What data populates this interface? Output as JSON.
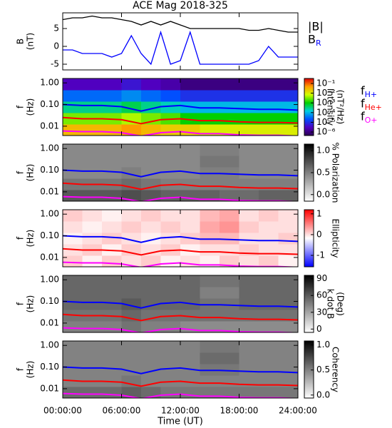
{
  "chart_data": [
    {
      "type": "line",
      "title": "ACE Mag 2018-325",
      "ylabel": [
        "B",
        "(nT)"
      ],
      "x": [
        0,
        1,
        2,
        3,
        4,
        5,
        6,
        7,
        8,
        9,
        10,
        11,
        12,
        13,
        14,
        15,
        16,
        17,
        18,
        19,
        20,
        21,
        22,
        23,
        24
      ],
      "xlim": [
        0,
        24
      ],
      "ylim": [
        -6.6,
        9.4
      ],
      "yticks": [
        5,
        0,
        -5
      ],
      "legend": "right",
      "series": [
        {
          "name": "|B|",
          "color": "#000000",
          "values": [
            7.5,
            8,
            8,
            8.5,
            8,
            8,
            7.5,
            7,
            6,
            7,
            6,
            7,
            6,
            5,
            5,
            5,
            5,
            5,
            5,
            4.5,
            4.5,
            5,
            4.5,
            4,
            4
          ]
        },
        {
          "name": "B",
          "subscript": "R",
          "color": "#0000ff",
          "values": [
            -1,
            -1,
            -2,
            -2,
            -2,
            -3,
            -2,
            3,
            -2,
            -5,
            4,
            -5,
            -4,
            4,
            -5,
            -5,
            -5,
            -5,
            -5,
            -5,
            -4,
            0,
            -3,
            -3,
            -3
          ]
        }
      ]
    },
    {
      "type": "heatmap",
      "ylabel": [
        "f",
        "(Hz)"
      ],
      "log_y": true,
      "xlim": [
        0,
        24
      ],
      "ylim": [
        0.0037,
        1.6
      ],
      "yticks": [
        {
          "value": 1,
          "label": "1.00"
        },
        {
          "value": 0.1,
          "label": "0.10"
        },
        0.01
      ],
      "colormap": "rainbow",
      "log_c": true,
      "clim": [
        4.3e-07,
        0.33
      ],
      "cticks": [
        {
          "value": 0.1,
          "label": "10⁻¹"
        },
        {
          "value": 0.01,
          "label": "10⁻²"
        },
        {
          "value": 0.001,
          "label": "10⁻³"
        },
        {
          "value": 0.0001,
          "label": "10⁻⁴"
        },
        {
          "value": 1e-05,
          "label": "10⁻⁵"
        },
        {
          "value": 1e-06,
          "label": "10⁻⁶"
        }
      ],
      "clabel": [
        "Intensity",
        "(nT²/Hz)"
      ],
      "z": [
        [
          0.03,
          0.03,
          0.03,
          0.05,
          0.03,
          0.02,
          0.02,
          0.01,
          0.01,
          0.01,
          0.01,
          0.01
        ],
        [
          0.003,
          0.003,
          0.003,
          0.005,
          0.003,
          0.002,
          0.001,
          0.001,
          0.001,
          0.001,
          0.001,
          0.001
        ],
        [
          0.0003,
          0.0003,
          0.0003,
          0.0005,
          0.0003,
          0.0002,
          0.0001,
          0.0001,
          0.0001,
          0.0001,
          0.0001,
          0.0001
        ],
        [
          3e-05,
          3e-05,
          3e-05,
          5e-05,
          3e-05,
          2e-05,
          1e-05,
          1e-05,
          1e-05,
          1e-05,
          1e-05,
          1e-05
        ],
        [
          3e-06,
          3e-06,
          3e-06,
          5e-06,
          3e-06,
          2e-06,
          1e-06,
          1e-06,
          1e-06,
          1e-06,
          1e-06,
          1e-06
        ]
      ],
      "x": [
        0,
        2,
        4,
        6,
        8,
        10,
        12,
        14,
        16,
        18,
        20,
        22,
        24
      ],
      "legend": "right",
      "series": [
        {
          "name": "f",
          "subscript": "H+",
          "color": "#0000ff",
          "values": [
            0.1,
            0.09,
            0.09,
            0.08,
            0.05,
            0.08,
            0.09,
            0.07,
            0.07,
            0.065,
            0.06,
            0.06,
            0.055
          ]
        },
        {
          "name": "f",
          "subscript": "He+",
          "color": "#ff0000",
          "values": [
            0.025,
            0.022,
            0.022,
            0.02,
            0.013,
            0.02,
            0.022,
            0.018,
            0.018,
            0.016,
            0.015,
            0.015,
            0.014
          ]
        },
        {
          "name": "f",
          "subscript": "O+",
          "color": "#ff00ff",
          "values": [
            0.006,
            0.0056,
            0.0056,
            0.005,
            0.0035,
            0.005,
            0.0056,
            0.0045,
            0.0045,
            0.004,
            0.0038,
            0.0038,
            0.0035
          ]
        }
      ]
    },
    {
      "type": "heatmap",
      "ylabel": [
        "f",
        "(Hz)"
      ],
      "log_y": true,
      "xlim": [
        0,
        24
      ],
      "ylim": [
        0.0037,
        1.6
      ],
      "yticks": [
        {
          "value": 1,
          "label": "1.00"
        },
        {
          "value": 0.1,
          "label": "0.10"
        },
        0.01
      ],
      "colormap": "gray",
      "clim": [
        -0.15,
        1.15
      ],
      "cticks": [
        {
          "value": 1,
          "label": "1.0"
        },
        0.5,
        {
          "value": 0,
          "label": "0.0"
        }
      ],
      "clabel": [
        "% Polarization"
      ],
      "z": [
        [
          0.7,
          0.7,
          0.7,
          0.75,
          0.7,
          0.65,
          0.65,
          0.65,
          0.6,
          0.6,
          0.65,
          0.65
        ],
        [
          0.55,
          0.55,
          0.55,
          0.6,
          0.55,
          0.5,
          0.5,
          0.5,
          0.5,
          0.5,
          0.5,
          0.5
        ],
        [
          0.45,
          0.45,
          0.45,
          0.5,
          0.45,
          0.45,
          0.45,
          0.5,
          0.5,
          0.45,
          0.45,
          0.45
        ],
        [
          0.45,
          0.45,
          0.45,
          0.45,
          0.45,
          0.45,
          0.45,
          0.55,
          0.55,
          0.45,
          0.45,
          0.45
        ],
        [
          0.45,
          0.45,
          0.45,
          0.45,
          0.45,
          0.45,
          0.45,
          0.5,
          0.5,
          0.45,
          0.45,
          0.45
        ]
      ]
    },
    {
      "type": "heatmap",
      "ylabel": [
        "f",
        "(Hz)"
      ],
      "log_y": true,
      "xlim": [
        0,
        24
      ],
      "ylim": [
        0.0037,
        1.6
      ],
      "yticks": [
        {
          "value": 1,
          "label": "1.00"
        },
        {
          "value": 0.1,
          "label": "0.10"
        },
        0.01
      ],
      "colormap": "bwr",
      "clim": [
        -1.55,
        1.2
      ],
      "cticks": [
        1,
        0,
        -1
      ],
      "clabel": [
        "Ellipticity"
      ],
      "z": [
        [
          0.1,
          -0.1,
          0.1,
          0,
          0.1,
          -0.1,
          0,
          -0.1,
          0.1,
          0,
          0.1,
          -0.1
        ],
        [
          0,
          0.1,
          -0.1,
          0.1,
          0,
          0.1,
          -0.1,
          0,
          0,
          0.1,
          0,
          0
        ],
        [
          -0.1,
          0,
          0.1,
          0,
          -0.1,
          0,
          0.1,
          0.2,
          0.2,
          0,
          0,
          0.1
        ],
        [
          0,
          -0.1,
          0,
          0.1,
          0,
          0.1,
          0,
          0.3,
          0.4,
          0.1,
          0,
          0
        ],
        [
          0.1,
          0,
          -0.1,
          0,
          0.1,
          0,
          0,
          0.2,
          0.3,
          0,
          0.1,
          0
        ]
      ]
    },
    {
      "type": "heatmap",
      "ylabel": [
        "f",
        "(Hz)"
      ],
      "log_y": true,
      "xlim": [
        0,
        24
      ],
      "ylim": [
        0.0037,
        1.6
      ],
      "yticks": [
        {
          "value": 1,
          "label": "1.00"
        },
        {
          "value": 0.1,
          "label": "0.10"
        },
        0.01
      ],
      "colormap": "gray",
      "clim": [
        -6,
        96
      ],
      "cticks": [
        90,
        60,
        30,
        0
      ],
      "clabel": [
        "k dot B",
        "(Deg)"
      ],
      "z": [
        [
          45,
          45,
          45,
          50,
          45,
          45,
          40,
          40,
          40,
          40,
          40,
          40
        ],
        [
          50,
          50,
          50,
          55,
          50,
          50,
          50,
          50,
          50,
          50,
          50,
          50
        ],
        [
          55,
          55,
          55,
          60,
          55,
          55,
          55,
          50,
          50,
          55,
          55,
          55
        ],
        [
          55,
          55,
          55,
          55,
          55,
          55,
          55,
          45,
          45,
          55,
          55,
          55
        ],
        [
          55,
          55,
          55,
          55,
          55,
          55,
          55,
          50,
          50,
          55,
          55,
          55
        ]
      ]
    },
    {
      "type": "heatmap",
      "ylabel": [
        "f",
        "(Hz)"
      ],
      "log_y": true,
      "xlim": [
        0,
        24
      ],
      "ylim": [
        0.0037,
        1.6
      ],
      "yticks": [
        {
          "value": 1,
          "label": "1.00"
        },
        {
          "value": 0.1,
          "label": "0.10"
        },
        0.01
      ],
      "colormap": "gray",
      "clim": [
        -0.06,
        1.08
      ],
      "cticks": [
        {
          "value": 1,
          "label": "1.0"
        },
        0.5,
        {
          "value": 0,
          "label": "0.0"
        }
      ],
      "clabel": [
        "Coherency"
      ],
      "xlabel": "Time (UT)",
      "xticks": [
        {
          "value": 0,
          "label": "00:00:00"
        },
        {
          "value": 6,
          "label": "06:00:00"
        },
        {
          "value": 12,
          "label": "12:00:00"
        },
        {
          "value": 18,
          "label": "18:00:00"
        },
        {
          "value": 24,
          "label": "24:00:00"
        }
      ],
      "z": [
        [
          0.6,
          0.6,
          0.6,
          0.65,
          0.6,
          0.55,
          0.55,
          0.55,
          0.55,
          0.55,
          0.55,
          0.55
        ],
        [
          0.5,
          0.5,
          0.5,
          0.55,
          0.5,
          0.5,
          0.5,
          0.5,
          0.5,
          0.5,
          0.5,
          0.5
        ],
        [
          0.5,
          0.5,
          0.5,
          0.5,
          0.5,
          0.5,
          0.5,
          0.55,
          0.55,
          0.5,
          0.5,
          0.5
        ],
        [
          0.5,
          0.5,
          0.5,
          0.5,
          0.5,
          0.5,
          0.5,
          0.6,
          0.6,
          0.5,
          0.5,
          0.5
        ],
        [
          0.5,
          0.5,
          0.5,
          0.5,
          0.5,
          0.5,
          0.5,
          0.55,
          0.55,
          0.5,
          0.5,
          0.5
        ]
      ]
    }
  ]
}
